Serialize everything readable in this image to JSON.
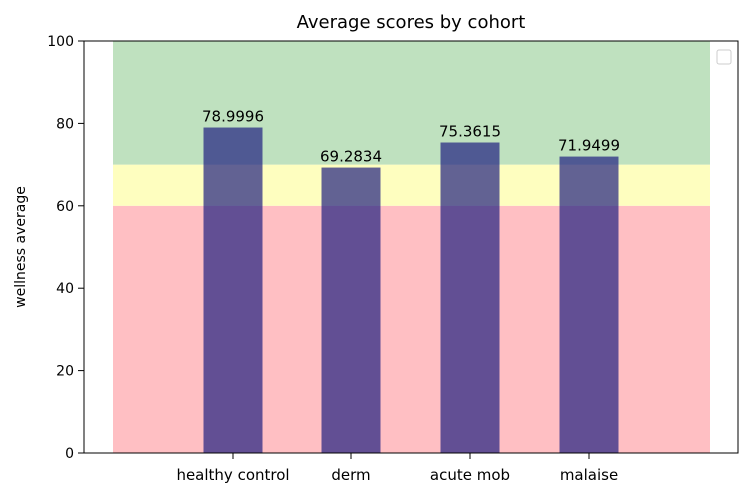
{
  "chart_data": {
    "type": "bar",
    "title": "Average scores by cohort",
    "xlabel": "",
    "ylabel": "wellness average",
    "categories": [
      "healthy control",
      "derm",
      "acute mob",
      "malaise"
    ],
    "values": [
      78.9996,
      69.2834,
      75.3615,
      71.9499
    ],
    "value_labels": [
      "78.9996",
      "69.2834",
      "75.3615",
      "71.9499"
    ],
    "ylim": [
      0,
      100
    ],
    "yticks": [
      0,
      20,
      40,
      60,
      80,
      100
    ],
    "bands": [
      {
        "from": 0,
        "to": 60,
        "color": "#ffbfc3"
      },
      {
        "from": 60,
        "to": 70,
        "color": "#fefebf"
      },
      {
        "from": 70,
        "to": 100,
        "color": "#bfe1bf"
      }
    ],
    "bar_color": "#1f1f80",
    "bar_alpha": 0.7,
    "grid": false,
    "legend": {
      "location": "top-right",
      "entries": []
    }
  }
}
